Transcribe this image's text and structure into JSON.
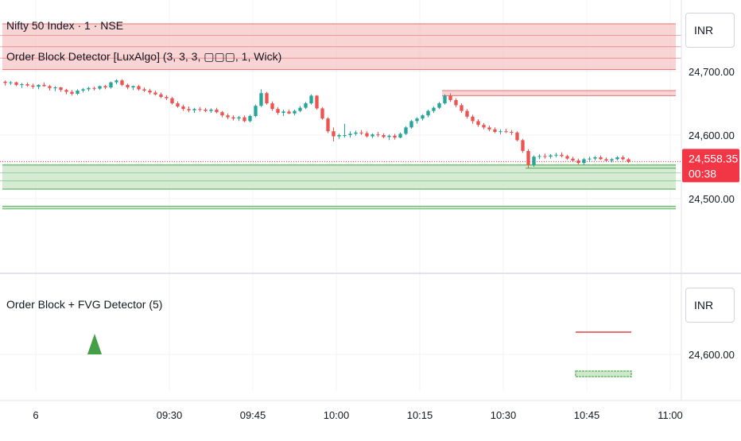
{
  "header": {
    "symbol_title": "Nifty 50 Index · 1 · NSE",
    "indicator_1": "Order Block Detector [LuxAlgo] (3, 3, 3, ▢▢▢, 1, Wick)",
    "indicator_2": "Order Block + FVG Detector (5)"
  },
  "currency_label": "INR",
  "currency_label_2": "INR",
  "price_axis": {
    "ticks": [
      {
        "value": 24700,
        "label": "24,700.00"
      },
      {
        "value": 24600,
        "label": "24,600.00"
      },
      {
        "value": 24500,
        "label": "24,500.00"
      }
    ],
    "current_price": {
      "value": 24558.35,
      "label": "24,558.35",
      "countdown": "00:38"
    }
  },
  "lower_axis": {
    "ticks": [
      {
        "value": 24600,
        "label": "24,600.00"
      }
    ]
  },
  "time_axis": {
    "ticks": [
      {
        "minute": 6,
        "label": "6"
      },
      {
        "minute": 30,
        "label": "09:30"
      },
      {
        "minute": 45,
        "label": "09:45"
      },
      {
        "minute": 60,
        "label": "10:00"
      },
      {
        "minute": 75,
        "label": "10:15"
      },
      {
        "minute": 90,
        "label": "10:30"
      },
      {
        "minute": 105,
        "label": "10:45"
      },
      {
        "minute": 120,
        "label": "11:00"
      }
    ]
  },
  "colors": {
    "up": "#26a69a",
    "down": "#ef5350",
    "bear_zone": "#f7c6c6",
    "bear_line": "#e57373",
    "bull_zone": "#cfe8cc",
    "bull_line": "#66bb6a",
    "grid": "#f0f3fa",
    "axis_border": "#e0e3eb",
    "price_badge": "#f23645"
  },
  "chart_data": {
    "type": "candlestick",
    "x_unit": "minutes after 09:00",
    "ylim": [
      24440,
      24790
    ],
    "bearish_order_blocks": [
      {
        "top": 24775,
        "bottom": 24703,
        "x_start": 0,
        "x_end": 121
      },
      {
        "top": 24670,
        "bottom": 24662,
        "x_start": 79,
        "x_end": 121
      }
    ],
    "bullish_order_blocks": [
      {
        "top": 24553,
        "bottom": 24515,
        "x_start": 0,
        "x_end": 121
      },
      {
        "top": 24553,
        "bottom": 24548,
        "x_start": 94,
        "x_end": 121
      },
      {
        "top": 24488,
        "bottom": 24484,
        "x_start": 0,
        "x_end": 121
      }
    ],
    "candles": [
      [
        24684,
        24686,
        24678,
        24682
      ],
      [
        24682,
        24685,
        24679,
        24683
      ],
      [
        24683,
        24684,
        24677,
        24679
      ],
      [
        24679,
        24682,
        24674,
        24680
      ],
      [
        24680,
        24683,
        24676,
        24678
      ],
      [
        24678,
        24681,
        24673,
        24676
      ],
      [
        24676,
        24680,
        24672,
        24679
      ],
      [
        24679,
        24683,
        24676,
        24677
      ],
      [
        24677,
        24679,
        24670,
        24674
      ],
      [
        24674,
        24677,
        24669,
        24675
      ],
      [
        24675,
        24676,
        24668,
        24671
      ],
      [
        24671,
        24673,
        24664,
        24668
      ],
      [
        24668,
        24671,
        24662,
        24665
      ],
      [
        24665,
        24672,
        24663,
        24670
      ],
      [
        24670,
        24674,
        24667,
        24672
      ],
      [
        24672,
        24676,
        24669,
        24674
      ],
      [
        24674,
        24676,
        24670,
        24673
      ],
      [
        24673,
        24678,
        24671,
        24677
      ],
      [
        24677,
        24679,
        24672,
        24675
      ],
      [
        24675,
        24684,
        24673,
        24683
      ],
      [
        24683,
        24688,
        24680,
        24686
      ],
      [
        24686,
        24688,
        24677,
        24679
      ],
      [
        24679,
        24681,
        24672,
        24675
      ],
      [
        24675,
        24678,
        24671,
        24677
      ],
      [
        24677,
        24679,
        24670,
        24672
      ],
      [
        24672,
        24675,
        24668,
        24670
      ],
      [
        24670,
        24673,
        24664,
        24667
      ],
      [
        24667,
        24670,
        24662,
        24664
      ],
      [
        24664,
        24667,
        24658,
        24660
      ],
      [
        24660,
        24663,
        24655,
        24658
      ],
      [
        24658,
        24660,
        24648,
        24650
      ],
      [
        24650,
        24653,
        24643,
        24645
      ],
      [
        24645,
        24648,
        24638,
        24641
      ],
      [
        24641,
        24645,
        24636,
        24639
      ],
      [
        24639,
        24643,
        24635,
        24641
      ],
      [
        24641,
        24644,
        24637,
        24640
      ],
      [
        24640,
        24643,
        24636,
        24638
      ],
      [
        24638,
        24642,
        24635,
        24640
      ],
      [
        24640,
        24643,
        24634,
        24636
      ],
      [
        24636,
        24638,
        24628,
        24631
      ],
      [
        24631,
        24634,
        24625,
        24628
      ],
      [
        24628,
        24631,
        24623,
        24626
      ],
      [
        24626,
        24630,
        24622,
        24628
      ],
      [
        24628,
        24631,
        24620,
        24622
      ],
      [
        24622,
        24632,
        24620,
        24630
      ],
      [
        24630,
        24648,
        24628,
        24646
      ],
      [
        24646,
        24672,
        24644,
        24666
      ],
      [
        24666,
        24668,
        24648,
        24650
      ],
      [
        24650,
        24653,
        24638,
        24641
      ],
      [
        24641,
        24644,
        24632,
        24635
      ],
      [
        24635,
        24640,
        24630,
        24637
      ],
      [
        24637,
        24640,
        24633,
        24634
      ],
      [
        24634,
        24640,
        24631,
        24638
      ],
      [
        24638,
        24646,
        24636,
        24643
      ],
      [
        24643,
        24652,
        24641,
        24650
      ],
      [
        24650,
        24664,
        24648,
        24662
      ],
      [
        24662,
        24663,
        24640,
        24642
      ],
      [
        24642,
        24644,
        24624,
        24626
      ],
      [
        24626,
        24628,
        24603,
        24606
      ],
      [
        24606,
        24612,
        24590,
        24598
      ],
      [
        24598,
        24602,
        24594,
        24600
      ],
      [
        24600,
        24618,
        24596,
        24600
      ],
      [
        24600,
        24606,
        24596,
        24602
      ],
      [
        24602,
        24607,
        24599,
        24604
      ],
      [
        24604,
        24608,
        24600,
        24603
      ],
      [
        24603,
        24606,
        24596,
        24598
      ],
      [
        24598,
        24603,
        24595,
        24601
      ],
      [
        24601,
        24605,
        24597,
        24600
      ],
      [
        24600,
        24603,
        24595,
        24597
      ],
      [
        24597,
        24601,
        24592,
        24599
      ],
      [
        24599,
        24602,
        24593,
        24596
      ],
      [
        24596,
        24604,
        24595,
        24602
      ],
      [
        24602,
        24614,
        24600,
        24612
      ],
      [
        24612,
        24624,
        24610,
        24622
      ],
      [
        24622,
        24628,
        24618,
        24626
      ],
      [
        24626,
        24633,
        24623,
        24631
      ],
      [
        24631,
        24640,
        24628,
        24638
      ],
      [
        24638,
        24645,
        24635,
        24643
      ],
      [
        24643,
        24652,
        24641,
        24650
      ],
      [
        24650,
        24664,
        24648,
        24662
      ],
      [
        24662,
        24666,
        24652,
        24655
      ],
      [
        24655,
        24658,
        24644,
        24647
      ],
      [
        24647,
        24650,
        24635,
        24638
      ],
      [
        24638,
        24641,
        24626,
        24629
      ],
      [
        24629,
        24632,
        24618,
        24622
      ],
      [
        24622,
        24625,
        24613,
        24616
      ],
      [
        24616,
        24619,
        24609,
        24612
      ],
      [
        24612,
        24615,
        24606,
        24609
      ],
      [
        24609,
        24612,
        24603,
        24605
      ],
      [
        24605,
        24609,
        24601,
        24606
      ],
      [
        24606,
        24610,
        24603,
        24605
      ],
      [
        24605,
        24608,
        24600,
        24604
      ],
      [
        24604,
        24606,
        24590,
        24592
      ],
      [
        24592,
        24594,
        24572,
        24575
      ],
      [
        24575,
        24578,
        24548,
        24553
      ],
      [
        24553,
        24568,
        24550,
        24566
      ],
      [
        24566,
        24570,
        24562,
        24567
      ],
      [
        24567,
        24571,
        24563,
        24566
      ],
      [
        24566,
        24570,
        24563,
        24568
      ],
      [
        24568,
        24572,
        24565,
        24569
      ],
      [
        24569,
        24573,
        24565,
        24567
      ],
      [
        24567,
        24569,
        24561,
        24563
      ],
      [
        24563,
        24566,
        24558,
        24560
      ],
      [
        24560,
        24563,
        24554,
        24556
      ],
      [
        24556,
        24564,
        24553,
        24562
      ],
      [
        24562,
        24566,
        24559,
        24563
      ],
      [
        24563,
        24567,
        24560,
        24565
      ],
      [
        24565,
        24568,
        24561,
        24562
      ],
      [
        24562,
        24565,
        24558,
        24560
      ],
      [
        24560,
        24564,
        24557,
        24562
      ],
      [
        24562,
        24567,
        24560,
        24565
      ],
      [
        24565,
        24568,
        24560,
        24562
      ],
      [
        24562,
        24564,
        24556,
        24558
      ]
    ],
    "signal_markers": [
      {
        "minute": 10,
        "type": "bullish-triangle"
      }
    ],
    "lower_pane_lines": [
      {
        "color": "bear",
        "x_start": 103,
        "x_end": 113,
        "value": 24670
      },
      {
        "color": "bull",
        "x_start": 103,
        "x_end": 113,
        "value": 24540
      }
    ]
  }
}
